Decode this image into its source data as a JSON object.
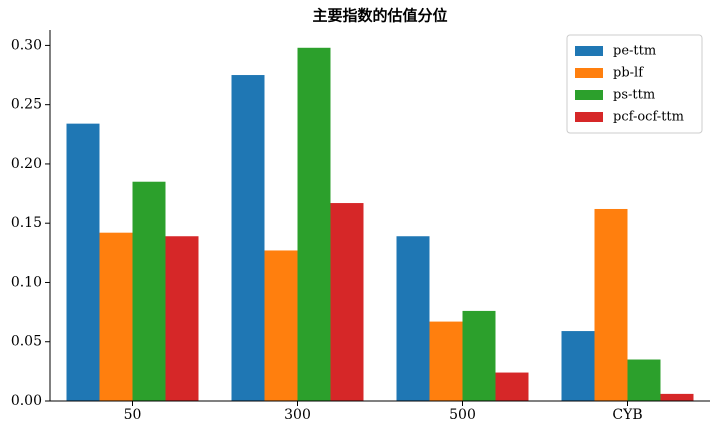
{
  "chart_data": {
    "type": "bar",
    "title": "主要指数的估值分位",
    "categories": [
      "50",
      "300",
      "500",
      "CYB"
    ],
    "series": [
      {
        "name": "pe-ttm",
        "color": "#1f77b4",
        "values": [
          0.234,
          0.275,
          0.139,
          0.059
        ]
      },
      {
        "name": "pb-lf",
        "color": "#ff7f0e",
        "values": [
          0.142,
          0.127,
          0.067,
          0.162
        ]
      },
      {
        "name": "ps-ttm",
        "color": "#2ca02c",
        "values": [
          0.185,
          0.298,
          0.076,
          0.035
        ]
      },
      {
        "name": "pcf-ocf-ttm",
        "color": "#d62728",
        "values": [
          0.139,
          0.167,
          0.024,
          0.006
        ]
      }
    ],
    "ylim": [
      0,
      0.313
    ],
    "yticks": [
      {
        "value": 0,
        "label": "0.00"
      },
      {
        "value": 0.05,
        "label": "0.05"
      },
      {
        "value": 0.1,
        "label": "0.10"
      },
      {
        "value": 0.15,
        "label": "0.15"
      },
      {
        "value": 0.2,
        "label": "0.20"
      },
      {
        "value": 0.25,
        "label": "0.25"
      },
      {
        "value": 0.3,
        "label": "0.30"
      }
    ],
    "legend": "upper right",
    "grid": false
  }
}
